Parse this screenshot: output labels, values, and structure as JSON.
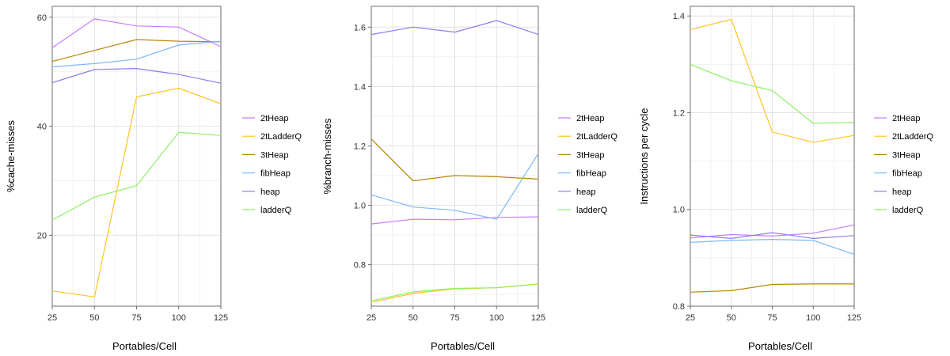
{
  "colors": {
    "2tHeap": "#c77cff",
    "2tLadderQ": "#ffc425",
    "3tHeap": "#b8860b",
    "fibHeap": "#7fb8f5",
    "heap": "#8c7cf0",
    "ladderQ": "#8cf064"
  },
  "chart_data": [
    {
      "type": "line",
      "xlabel": "Portables/Cell",
      "ylabel": "%cache-misses",
      "x": [
        25,
        50,
        75,
        100,
        125
      ],
      "xticks": [
        25,
        50,
        75,
        100,
        125
      ],
      "xlim": [
        25,
        125
      ],
      "ylim": [
        7,
        62
      ],
      "yticks": [
        20,
        40,
        60
      ],
      "ytick_labels": [
        "20",
        "40",
        "60"
      ],
      "yminor": [
        30,
        50
      ],
      "series": [
        {
          "name": "2tHeap",
          "values": [
            54.4,
            59.7,
            58.4,
            58.2,
            54.6
          ]
        },
        {
          "name": "2tLadderQ",
          "values": [
            9.8,
            8.7,
            45.4,
            47.0,
            44.1
          ]
        },
        {
          "name": "3tHeap",
          "values": [
            51.9,
            53.9,
            55.9,
            55.6,
            55.5
          ]
        },
        {
          "name": "fibHeap",
          "values": [
            50.9,
            51.5,
            52.3,
            54.9,
            55.6
          ]
        },
        {
          "name": "heap",
          "values": [
            48.0,
            50.4,
            50.6,
            49.5,
            47.9
          ]
        },
        {
          "name": "ladderQ",
          "values": [
            22.8,
            27.0,
            29.1,
            38.9,
            38.3
          ]
        }
      ],
      "legend": [
        "2tHeap",
        "2tLadderQ",
        "3tHeap",
        "fibHeap",
        "heap",
        "ladderQ"
      ],
      "legend_position": "right",
      "grid": true
    },
    {
      "type": "line",
      "xlabel": "Portables/Cell",
      "ylabel": "%branch-misses",
      "x": [
        25,
        50,
        75,
        100,
        125
      ],
      "xticks": [
        25,
        50,
        75,
        100,
        125
      ],
      "xlim": [
        25,
        125
      ],
      "ylim": [
        0.66,
        1.67
      ],
      "yticks": [
        0.8,
        1.0,
        1.2,
        1.4,
        1.6
      ],
      "ytick_labels": [
        "0.8",
        "1.0",
        "1.2",
        "1.4",
        "1.6"
      ],
      "yminor": [
        0.7,
        0.9,
        1.1,
        1.3,
        1.5
      ],
      "series": [
        {
          "name": "2tHeap",
          "values": [
            0.937,
            0.953,
            0.951,
            0.959,
            0.961
          ]
        },
        {
          "name": "2tLadderQ",
          "values": [
            0.673,
            0.703,
            0.718,
            0.722,
            0.735
          ]
        },
        {
          "name": "3tHeap",
          "values": [
            1.223,
            1.082,
            1.1,
            1.096,
            1.088
          ]
        },
        {
          "name": "fibHeap",
          "values": [
            1.035,
            0.994,
            0.983,
            0.953,
            1.174
          ]
        },
        {
          "name": "heap",
          "values": [
            1.575,
            1.6,
            1.583,
            1.622,
            1.575
          ]
        },
        {
          "name": "ladderQ",
          "values": [
            0.678,
            0.708,
            0.72,
            0.722,
            0.734
          ]
        }
      ],
      "legend": [
        "2tHeap",
        "2tLadderQ",
        "3tHeap",
        "fibHeap",
        "heap",
        "ladderQ"
      ],
      "legend_position": "right",
      "grid": true
    },
    {
      "type": "line",
      "xlabel": "Portables/Cell",
      "ylabel": "Instructions per cycle",
      "x": [
        25,
        50,
        75,
        100,
        125
      ],
      "xticks": [
        25,
        50,
        75,
        100,
        125
      ],
      "xlim": [
        25,
        125
      ],
      "ylim": [
        0.8,
        1.42
      ],
      "yticks": [
        0.8,
        1.0,
        1.2,
        1.4
      ],
      "ytick_labels": [
        "0.8",
        "1.0",
        "1.2",
        "1.4"
      ],
      "yminor": [
        0.9,
        1.1,
        1.3
      ],
      "series": [
        {
          "name": "2tHeap",
          "values": [
            0.941,
            0.948,
            0.945,
            0.951,
            0.968
          ]
        },
        {
          "name": "2tLadderQ",
          "values": [
            1.372,
            1.393,
            1.16,
            1.139,
            1.153
          ]
        },
        {
          "name": "3tHeap",
          "values": [
            0.829,
            0.832,
            0.845,
            0.846,
            0.846
          ]
        },
        {
          "name": "fibHeap",
          "values": [
            0.932,
            0.936,
            0.938,
            0.936,
            0.907
          ]
        },
        {
          "name": "heap",
          "values": [
            0.947,
            0.94,
            0.952,
            0.94,
            0.946
          ]
        },
        {
          "name": "ladderQ",
          "values": [
            1.3,
            1.266,
            1.246,
            1.178,
            1.18
          ]
        }
      ],
      "legend": [
        "2tHeap",
        "2tLadderQ",
        "3tHeap",
        "fibHeap",
        "heap",
        "ladderQ"
      ],
      "legend_position": "right",
      "grid": true
    }
  ]
}
